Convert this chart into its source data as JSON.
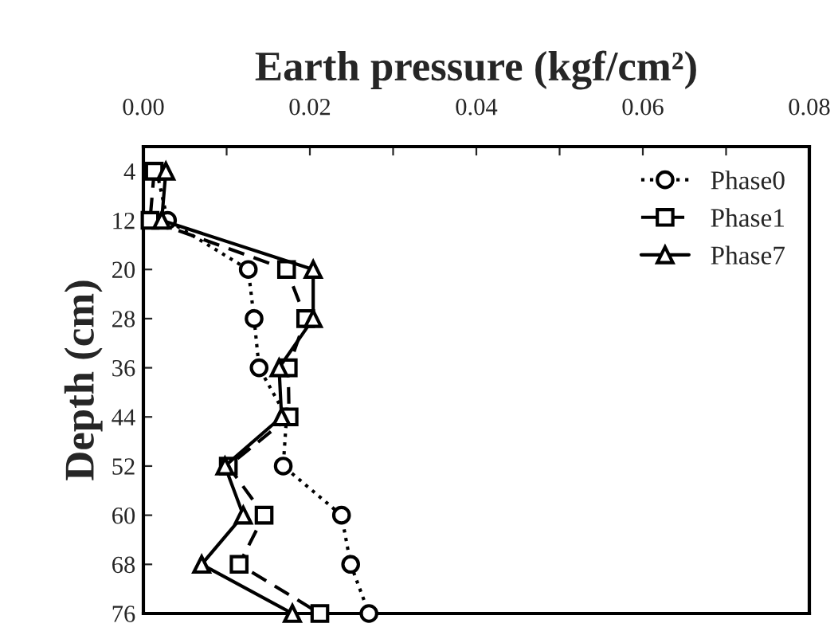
{
  "chart_data": {
    "type": "line",
    "title": "Earth pressure (kgf/cm²)",
    "ylabel": "Depth (cm)",
    "xlim": [
      0,
      0.08
    ],
    "xticks": [
      {
        "value": 0,
        "label": "0.00"
      },
      {
        "value": 0.01,
        "label": null
      },
      {
        "value": 0.02,
        "label": "0.02"
      },
      {
        "value": 0.03,
        "label": null
      },
      {
        "value": 0.04,
        "label": "0.04"
      },
      {
        "value": 0.05,
        "label": null
      },
      {
        "value": 0.06,
        "label": "0.06"
      },
      {
        "value": 0.07,
        "label": null
      },
      {
        "value": 0.08,
        "label": "0.08"
      }
    ],
    "ylim": [
      76,
      0
    ],
    "yticks": [
      4,
      12,
      20,
      28,
      36,
      44,
      52,
      60,
      68,
      76
    ],
    "grid": false,
    "legend": "top right",
    "series": [
      {
        "name": "Phase0",
        "color": "#000000",
        "marker": "circle",
        "line_style": "dotted",
        "x": [
          0.0016,
          0.0029,
          0.0126,
          0.0133,
          0.0139,
          0.0172,
          0.0168,
          0.0238,
          0.0249,
          0.0271
        ],
        "values": [
          4,
          12,
          20,
          28,
          36,
          44,
          52,
          60,
          68,
          76
        ]
      },
      {
        "name": "Phase1",
        "color": "#000000",
        "marker": "square",
        "line_style": "dashed",
        "x": [
          0.0013,
          0.0008,
          0.0172,
          0.0195,
          0.0174,
          0.0175,
          0.0102,
          0.0145,
          0.0115,
          0.0212
        ],
        "values": [
          4,
          12,
          20,
          28,
          36,
          44,
          52,
          60,
          68,
          76
        ]
      },
      {
        "name": "Phase7",
        "color": "#000000",
        "marker": "triangle",
        "line_style": "solid",
        "x": [
          0.0027,
          0.0022,
          0.0204,
          0.0204,
          0.0163,
          0.0166,
          0.0098,
          0.012,
          0.007,
          0.0179
        ],
        "values": [
          4,
          12,
          20,
          28,
          36,
          44,
          52,
          60,
          68,
          76
        ]
      }
    ]
  }
}
